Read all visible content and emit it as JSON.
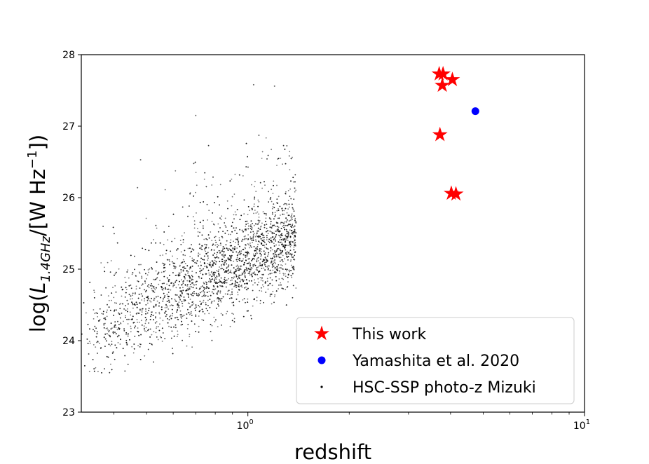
{
  "chart_data": {
    "type": "scatter",
    "xlabel": "redshift",
    "ylabel": "log(L_1.4GHz/[W Hz^-1])",
    "x_scale": "log",
    "xlim": [
      0.32,
      10
    ],
    "ylim": [
      23,
      28
    ],
    "x_ticks": [
      {
        "value": 1,
        "label": "10",
        "exponent": "0"
      },
      {
        "value": 10,
        "label": "10",
        "exponent": "1"
      }
    ],
    "y_ticks": [
      23,
      24,
      25,
      26,
      27,
      28
    ],
    "legend_position": "lower-right",
    "series": [
      {
        "name": "This work",
        "marker": "star",
        "color": "#ff0000",
        "points": [
          {
            "x": 3.7,
            "y": 27.73
          },
          {
            "x": 3.8,
            "y": 27.73
          },
          {
            "x": 4.05,
            "y": 27.65
          },
          {
            "x": 3.78,
            "y": 27.57
          },
          {
            "x": 3.72,
            "y": 26.88
          },
          {
            "x": 4.02,
            "y": 26.06
          },
          {
            "x": 4.15,
            "y": 26.05
          }
        ]
      },
      {
        "name": "Yamashita et al. 2020",
        "marker": "circle",
        "color": "#0000ff",
        "points": [
          {
            "x": 4.74,
            "y": 27.21
          }
        ]
      },
      {
        "name": "HSC-SSP photo-z Mizuki",
        "marker": "dot",
        "color": "#000000",
        "x_range": [
          0.32,
          1.39
        ],
        "count": 4200,
        "selected_points": [
          {
            "x": 1.04,
            "y": 27.58
          },
          {
            "x": 1.2,
            "y": 27.56
          },
          {
            "x": 0.7,
            "y": 27.15
          },
          {
            "x": 0.48,
            "y": 26.53
          },
          {
            "x": 0.47,
            "y": 26.14
          }
        ]
      }
    ]
  }
}
